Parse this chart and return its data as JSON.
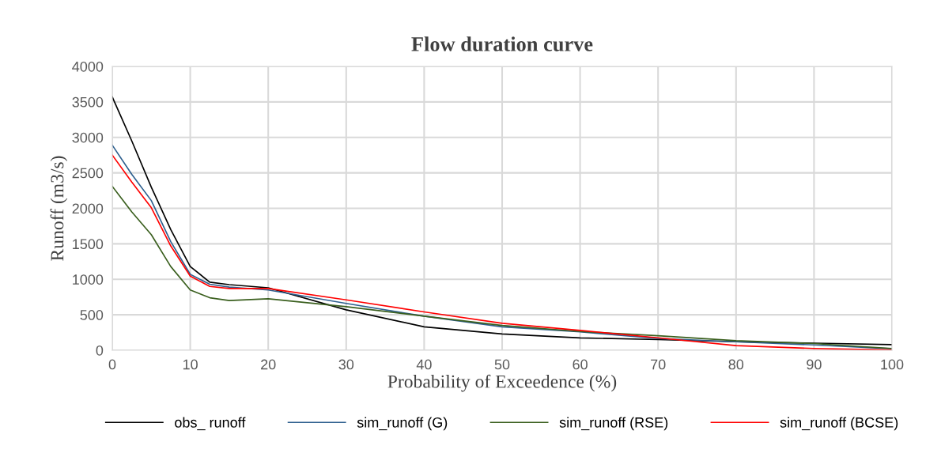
{
  "chart_data": {
    "type": "line",
    "title": "Flow duration curve",
    "xlabel": "Probability of Exceedence (%)",
    "ylabel": "Runoff (m3/s)",
    "x": [
      0,
      2.5,
      5,
      7.5,
      10,
      12.5,
      15,
      20,
      30,
      40,
      50,
      60,
      70,
      80,
      90,
      100
    ],
    "series": [
      {
        "name": "obs_ runoff",
        "color": "#000000",
        "values": [
          3570,
          2950,
          2300,
          1700,
          1180,
          960,
          925,
          880,
          570,
          330,
          230,
          175,
          150,
          120,
          100,
          80
        ]
      },
      {
        "name": "sim_runoff (G)",
        "color": "#2e5f8e",
        "values": [
          2890,
          2480,
          2110,
          1530,
          1070,
          930,
          890,
          850,
          660,
          480,
          330,
          260,
          165,
          120,
          75,
          20
        ]
      },
      {
        "name": "sim_runoff (RSE)",
        "color": "#3a5f1e",
        "values": [
          2310,
          1950,
          1630,
          1180,
          850,
          740,
          700,
          725,
          615,
          480,
          350,
          265,
          205,
          135,
          95,
          25
        ]
      },
      {
        "name": "sim_runoff (BCSE)",
        "color": "#ff0000",
        "values": [
          2750,
          2370,
          2010,
          1470,
          1045,
          900,
          870,
          870,
          710,
          540,
          380,
          280,
          175,
          65,
          25,
          5
        ]
      }
    ],
    "xlim": [
      0,
      100
    ],
    "xticks": [
      0,
      10,
      20,
      30,
      40,
      50,
      60,
      70,
      80,
      90,
      100
    ],
    "ylim": [
      0,
      4000
    ],
    "yticks": [
      0,
      500,
      1000,
      1500,
      2000,
      2500,
      3000,
      3500,
      4000
    ],
    "grid": true,
    "legend": "bottom",
    "marker": "none",
    "line_style": "solid"
  }
}
